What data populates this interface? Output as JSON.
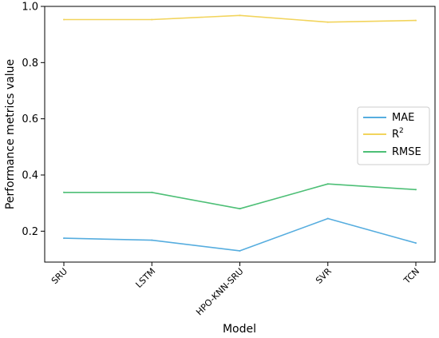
{
  "chart_data": {
    "type": "line",
    "title": "",
    "xlabel": "Model",
    "ylabel": "Performance metrics value",
    "categories": [
      "SRU",
      "LSTM",
      "HPO-KNN-SRU",
      "SVR",
      "TCN"
    ],
    "ylim": [
      0.09,
      1.0
    ],
    "yticks": [
      0.2,
      0.4,
      0.6,
      0.8,
      1.0
    ],
    "ytick_labels": [
      "0.2",
      "0.4",
      "0.6",
      "0.8",
      "1.0"
    ],
    "grid": false,
    "legend_position": "center-right",
    "series": [
      {
        "name": "MAE",
        "color": "#56addf",
        "values": [
          0.175,
          0.168,
          0.13,
          0.245,
          0.158
        ]
      },
      {
        "name": "R2",
        "color": "#f2d45c",
        "values": [
          0.953,
          0.953,
          0.968,
          0.944,
          0.95
        ]
      },
      {
        "name": "RMSE",
        "color": "#4dbf76",
        "values": [
          0.338,
          0.338,
          0.28,
          0.368,
          0.348
        ]
      }
    ]
  }
}
